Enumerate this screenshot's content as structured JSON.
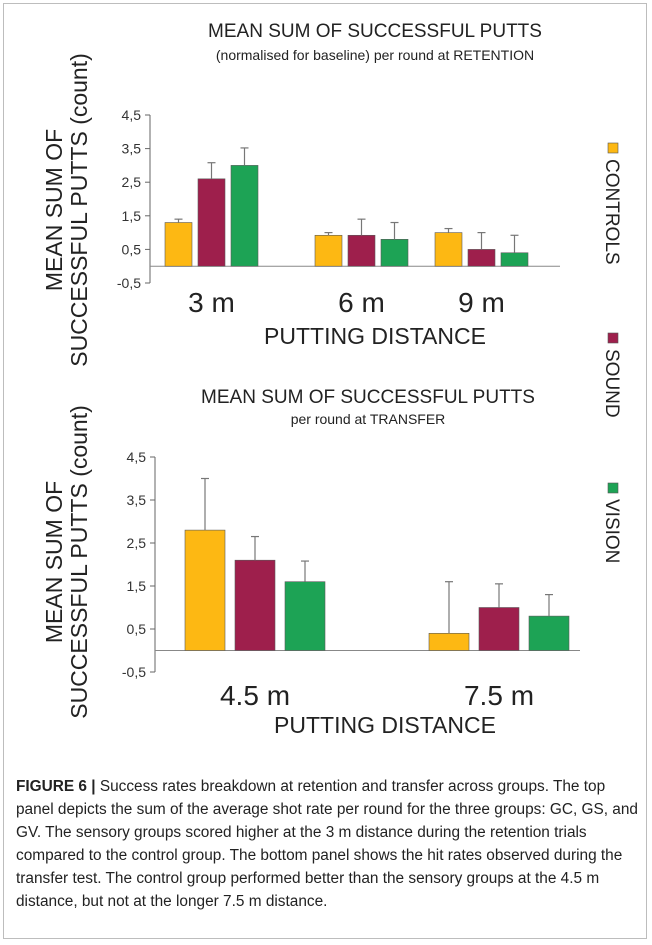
{
  "legend": {
    "items": [
      {
        "label": "CONTROLS",
        "color": "#FDB813"
      },
      {
        "label": "SOUND",
        "color": "#9E1F4C"
      },
      {
        "label": "VISION",
        "color": "#1DA355"
      }
    ]
  },
  "chart_data": [
    {
      "type": "bar",
      "title": "MEAN SUM OF SUCCESSFUL PUTTS",
      "subtitle": "(normalised for baseline) per round at RETENTION",
      "ylabel_line1": "MEAN SUM OF",
      "ylabel_line2": "SUCCESSFUL PUTTS (count)",
      "xlabel": "PUTTING DISTANCE",
      "categories": [
        "3 m",
        "6 m",
        "9 m"
      ],
      "yticks": [
        "-0,5",
        "0,5",
        "1,5",
        "2,5",
        "3,5",
        "4,5"
      ],
      "ylim": [
        -0.5,
        4.5
      ],
      "series": [
        {
          "name": "CONTROLS",
          "values": [
            1.3,
            0.92,
            1.0
          ],
          "errors": [
            0.1,
            0.08,
            0.12
          ]
        },
        {
          "name": "SOUND",
          "values": [
            2.6,
            0.92,
            0.5
          ],
          "errors": [
            0.48,
            0.48,
            0.5
          ]
        },
        {
          "name": "VISION",
          "values": [
            3.0,
            0.8,
            0.4
          ],
          "errors": [
            0.52,
            0.5,
            0.52
          ]
        }
      ]
    },
    {
      "type": "bar",
      "title": "MEAN SUM OF SUCCESSFUL PUTTS",
      "subtitle": "per round at TRANSFER",
      "ylabel_line1": "MEAN SUM OF",
      "ylabel_line2": "SUCCESSFUL PUTTS (count)",
      "xlabel": "PUTTING DISTANCE",
      "categories": [
        "4.5 m",
        "7.5 m"
      ],
      "yticks": [
        "-0,5",
        "0,5",
        "1,5",
        "2,5",
        "3,5",
        "4,5"
      ],
      "ylim": [
        -0.5,
        4.5
      ],
      "series": [
        {
          "name": "CONTROLS",
          "values": [
            2.8,
            0.4
          ],
          "errors": [
            1.2,
            1.2
          ]
        },
        {
          "name": "SOUND",
          "values": [
            2.1,
            1.0
          ],
          "errors": [
            0.55,
            0.55
          ]
        },
        {
          "name": "VISION",
          "values": [
            1.6,
            0.8
          ],
          "errors": [
            0.48,
            0.5
          ]
        }
      ]
    }
  ],
  "caption": {
    "lead": "FIGURE 6 |",
    "text": " Success rates breakdown at retention and transfer across groups. The top panel depicts the sum of the average shot rate per round for the three groups: GC, GS, and GV. The sensory groups scored higher at the 3 m distance during the retention trials compared to the control group. The bottom panel shows the hit rates observed during the transfer test. The control group performed better than the sensory groups at the 4.5 m distance, but not at the longer 7.5 m distance."
  }
}
